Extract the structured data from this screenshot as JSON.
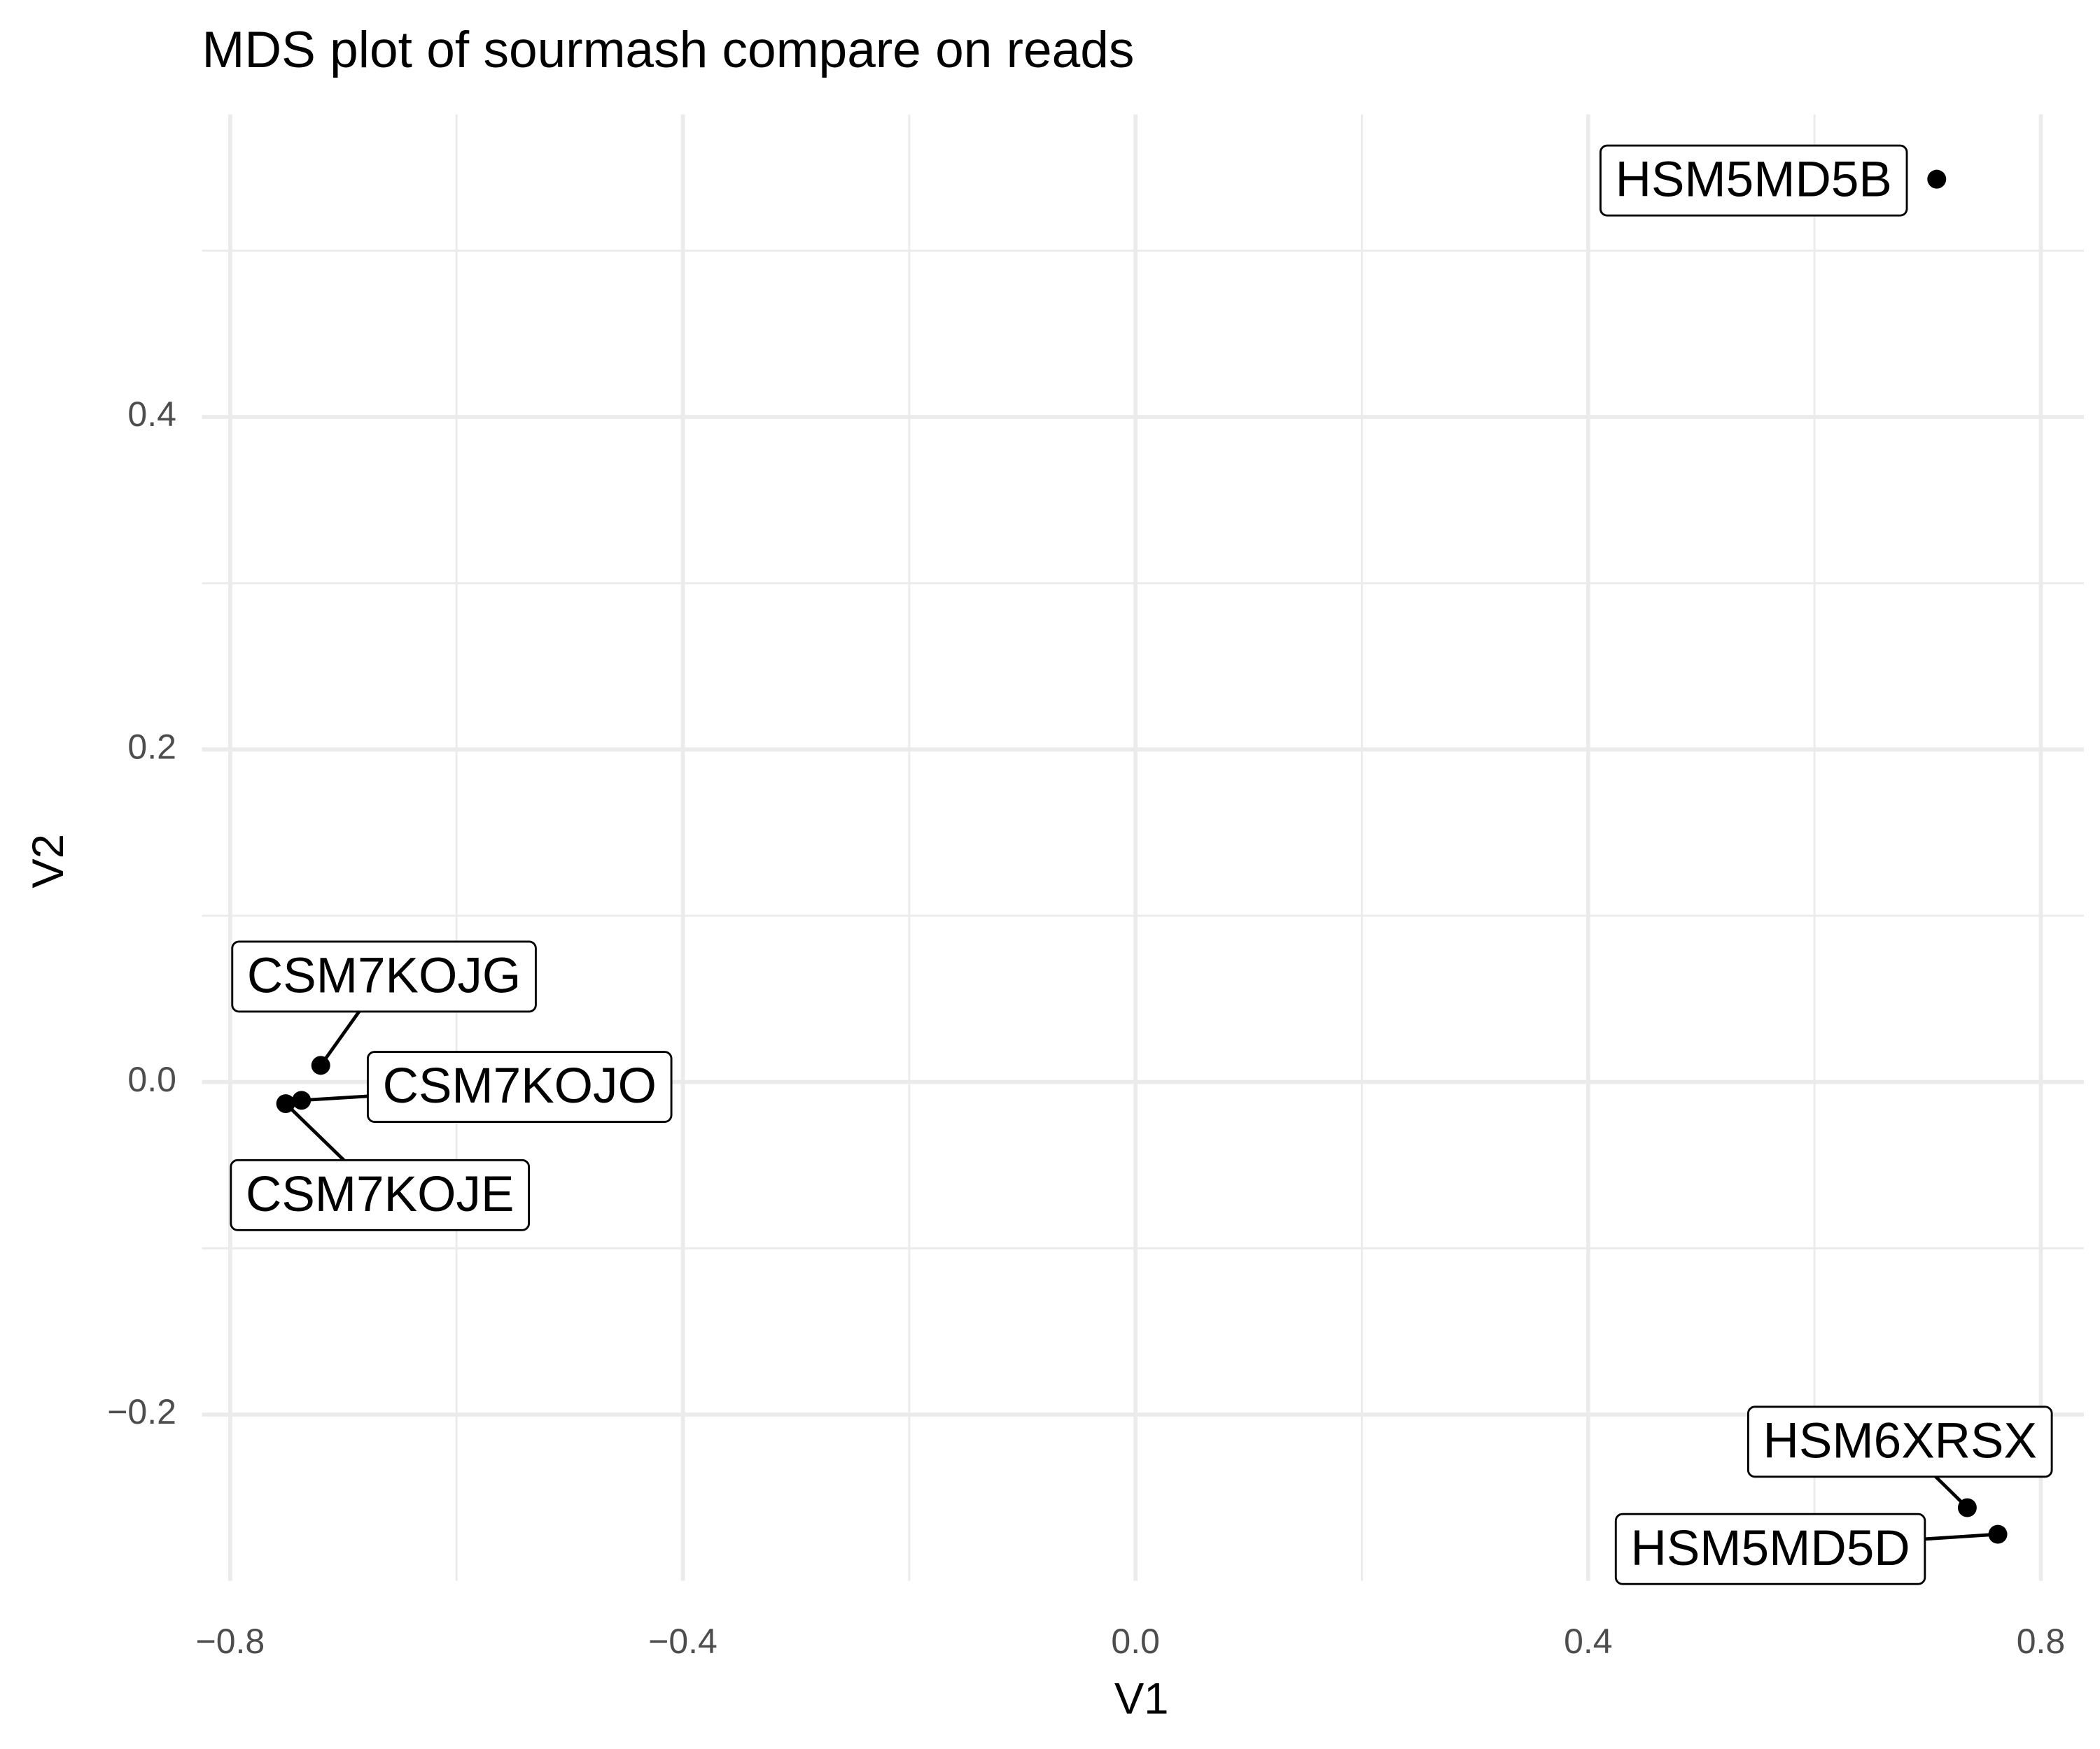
{
  "chart_data": {
    "type": "scatter",
    "title": "MDS plot of sourmash compare on reads",
    "x_label": "V1",
    "y_label": "V2",
    "labels": [
      "HSM5MD5B",
      "HSM6XRSX",
      "HSM5MD5D",
      "CSM7KOJG",
      "CSM7KOJO",
      "CSM7KOJE"
    ],
    "x": [
      0.708,
      0.735,
      0.762,
      -0.72,
      -0.737,
      -0.751
    ],
    "y": [
      0.543,
      -0.256,
      -0.272,
      0.01,
      -0.011,
      -0.013
    ],
    "color": "#000000",
    "xlim": [
      -0.825,
      0.838
    ],
    "ylim": [
      -0.3,
      0.582
    ],
    "xticks": [
      {
        "value": -0.8,
        "label": "−0.8"
      },
      {
        "value": -0.4,
        "label": "−0.4"
      },
      {
        "value": 0,
        "label": "0.0"
      },
      0.4,
      0.8
    ],
    "yticks": [
      {
        "value": -0.2,
        "label": "−0.2"
      },
      {
        "value": 0,
        "label": "0.0"
      },
      0.2,
      0.4
    ],
    "grid": true
  }
}
